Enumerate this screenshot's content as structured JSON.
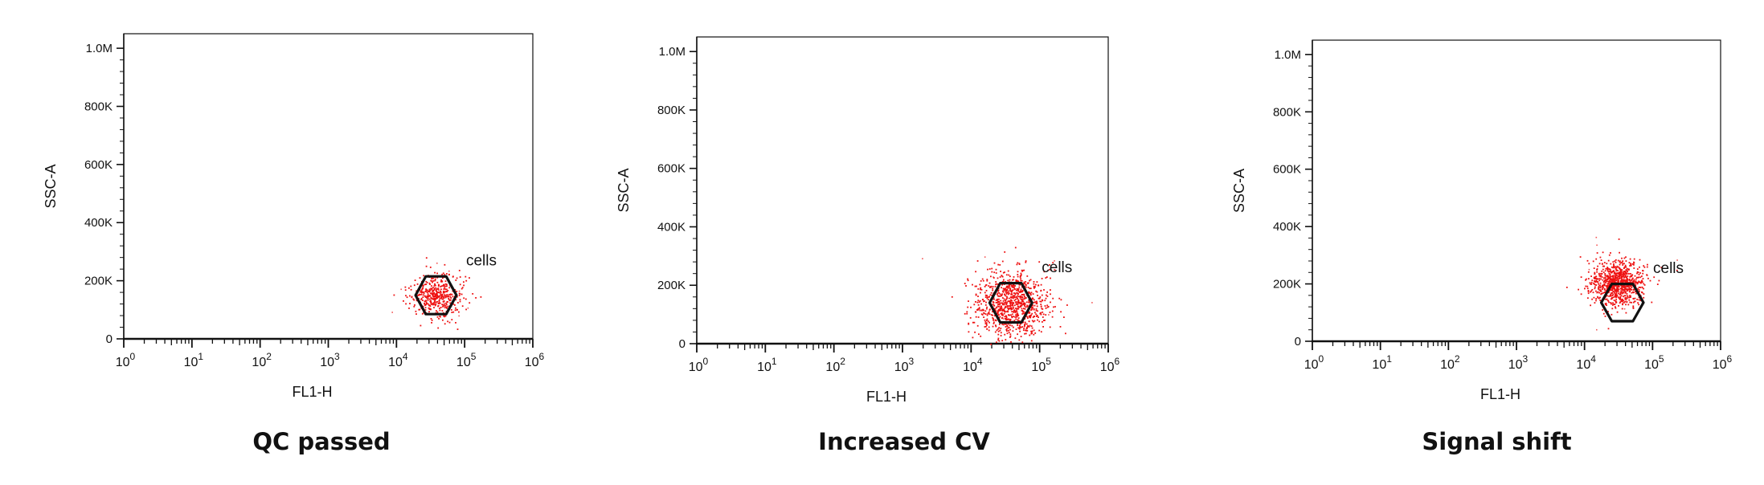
{
  "colors": {
    "events": "#ee1111",
    "gate": "#111111",
    "axis": "#111111"
  },
  "chart_data": [
    {
      "type": "scatter",
      "title": "QC passed",
      "xlabel": "FL1-H",
      "ylabel": "SSC-A",
      "x_scale": "log",
      "xlim": [
        1,
        1000000
      ],
      "ylim": [
        0,
        1050000
      ],
      "x_ticks": [
        {
          "base": "10",
          "exp": "0"
        },
        {
          "base": "10",
          "exp": "1"
        },
        {
          "base": "10",
          "exp": "2"
        },
        {
          "base": "10",
          "exp": "3"
        },
        {
          "base": "10",
          "exp": "4"
        },
        {
          "base": "10",
          "exp": "5"
        },
        {
          "base": "10",
          "exp": "6"
        }
      ],
      "y_ticks": [
        {
          "value": 0,
          "label": "0"
        },
        {
          "value": 200000,
          "label": "200K"
        },
        {
          "value": 400000,
          "label": "400K"
        },
        {
          "value": 600000,
          "label": "600K"
        },
        {
          "value": 800000,
          "label": "800K"
        },
        {
          "value": 1000000,
          "label": "1.0M"
        }
      ],
      "grid": false,
      "gate": {
        "label": "cells",
        "center_x": 38000,
        "center_y": 150000,
        "width_decades": 0.6,
        "height": 150000,
        "rotation_deg": 0
      },
      "population": {
        "center_x": 38000,
        "center_y": 150000,
        "spread_decades": 0.24,
        "spread_y": 45000,
        "count": 460,
        "seed": 7
      }
    },
    {
      "type": "scatter",
      "title": "Increased CV",
      "xlabel": "FL1-H",
      "ylabel": "SSC-A",
      "x_scale": "log",
      "xlim": [
        1,
        1000000
      ],
      "ylim": [
        0,
        1050000
      ],
      "x_ticks": [
        {
          "base": "10",
          "exp": "0"
        },
        {
          "base": "10",
          "exp": "1"
        },
        {
          "base": "10",
          "exp": "2"
        },
        {
          "base": "10",
          "exp": "3"
        },
        {
          "base": "10",
          "exp": "4"
        },
        {
          "base": "10",
          "exp": "5"
        },
        {
          "base": "10",
          "exp": "6"
        }
      ],
      "y_ticks": [
        {
          "value": 0,
          "label": "0"
        },
        {
          "value": 200000,
          "label": "200K"
        },
        {
          "value": 400000,
          "label": "400K"
        },
        {
          "value": 600000,
          "label": "600K"
        },
        {
          "value": 800000,
          "label": "800K"
        },
        {
          "value": 1000000,
          "label": "1.0M"
        }
      ],
      "grid": false,
      "gate": {
        "label": "cells",
        "center_x": 38000,
        "center_y": 140000,
        "width_decades": 0.62,
        "height": 155000,
        "rotation_deg": 0
      },
      "population": {
        "center_x": 38000,
        "center_y": 140000,
        "spread_decades": 0.33,
        "spread_y": 72000,
        "count": 950,
        "seed": 19
      }
    },
    {
      "type": "scatter",
      "title": "Signal shift",
      "xlabel": "FL1-H",
      "ylabel": "SSC-A",
      "x_scale": "log",
      "xlim": [
        1,
        1000000
      ],
      "ylim": [
        0,
        1050000
      ],
      "x_ticks": [
        {
          "base": "10",
          "exp": "0"
        },
        {
          "base": "10",
          "exp": "1"
        },
        {
          "base": "10",
          "exp": "2"
        },
        {
          "base": "10",
          "exp": "3"
        },
        {
          "base": "10",
          "exp": "4"
        },
        {
          "base": "10",
          "exp": "5"
        },
        {
          "base": "10",
          "exp": "6"
        }
      ],
      "y_ticks": [
        {
          "value": 0,
          "label": "0"
        },
        {
          "value": 200000,
          "label": "200K"
        },
        {
          "value": 400000,
          "label": "400K"
        },
        {
          "value": 600000,
          "label": "600K"
        },
        {
          "value": 800000,
          "label": "800K"
        },
        {
          "value": 1000000,
          "label": "1.0M"
        }
      ],
      "grid": false,
      "gate": {
        "label": "cells",
        "center_x": 36000,
        "center_y": 135000,
        "width_decades": 0.62,
        "height": 150000,
        "rotation_deg": 0
      },
      "population": {
        "center_x": 30000,
        "center_y": 205000,
        "spread_decades": 0.24,
        "spread_y": 48000,
        "count": 900,
        "seed": 31
      }
    }
  ]
}
